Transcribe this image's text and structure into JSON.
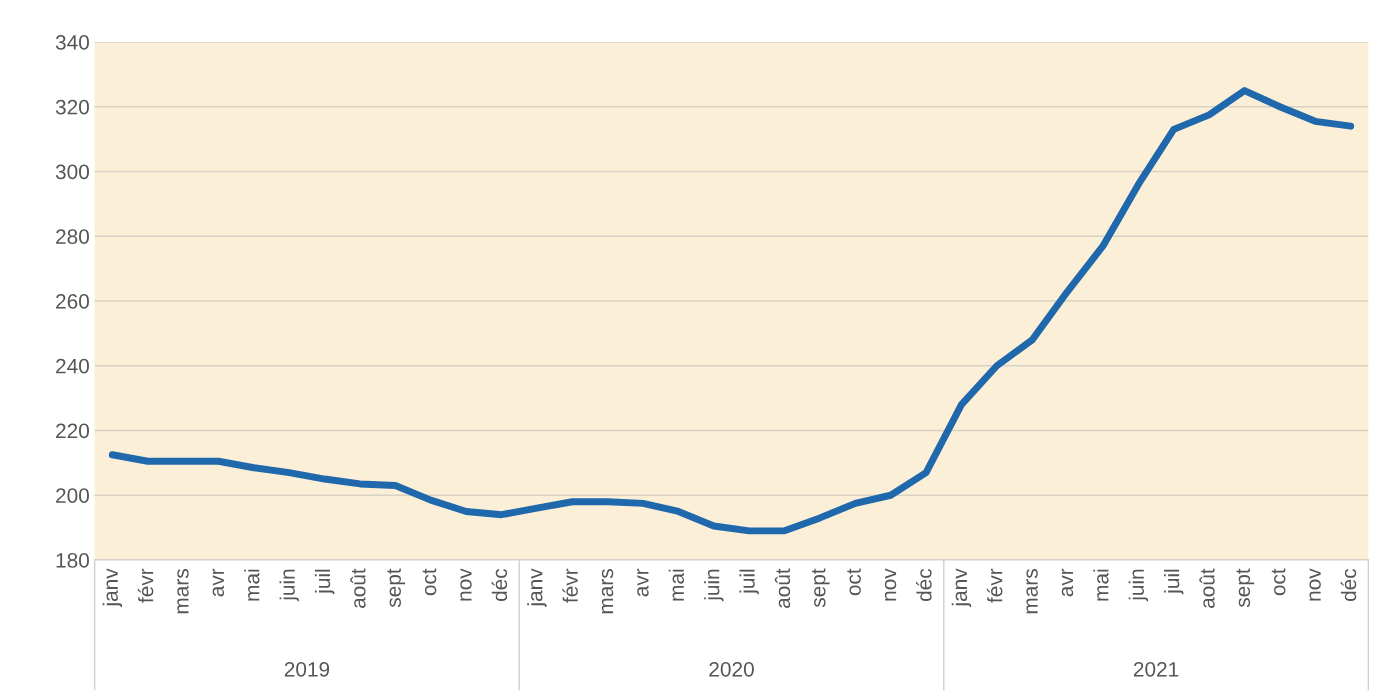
{
  "chart_data": {
    "type": "line",
    "categories": [
      "janv",
      "févr",
      "mars",
      "avr",
      "mai",
      "juin",
      "juil",
      "août",
      "sept",
      "oct",
      "nov",
      "déc",
      "janv",
      "févr",
      "mars",
      "avr",
      "mai",
      "juin",
      "juil",
      "août",
      "sept",
      "oct",
      "nov",
      "déc",
      "janv",
      "févr",
      "mars",
      "avr",
      "mai",
      "juin",
      "juil",
      "août",
      "sept",
      "oct",
      "nov",
      "déc"
    ],
    "series": [
      {
        "color": "#1f68ac",
        "values": [
          212.5,
          210.5,
          210.5,
          210.5,
          208.5,
          207,
          205,
          203.5,
          203,
          198.5,
          195,
          194,
          196,
          198,
          198,
          197.5,
          195,
          190.5,
          189,
          189,
          193,
          197.5,
          200,
          207,
          228,
          240,
          248,
          263,
          277,
          296,
          313,
          317.5,
          325,
          320,
          315.5,
          314
        ]
      }
    ],
    "annotations": [
      "2019",
      "2020",
      "2021"
    ],
    "ylim": [
      180,
      340
    ],
    "yticks": [
      180,
      200,
      220,
      240,
      260,
      280,
      300,
      320,
      340
    ],
    "grid": "y",
    "legend": false,
    "marker": "none",
    "line_style": "solid"
  }
}
